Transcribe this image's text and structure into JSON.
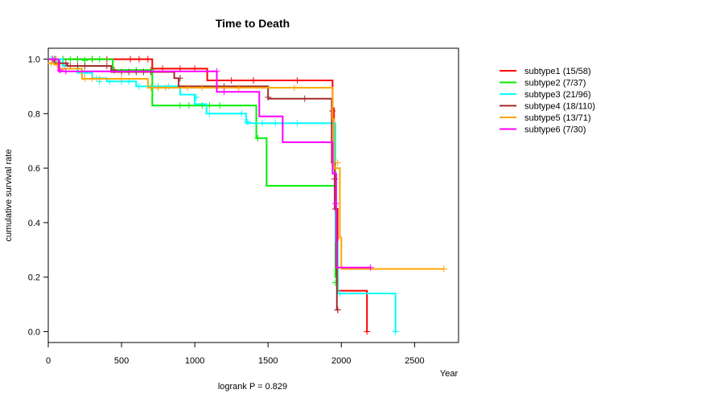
{
  "chart_data": {
    "type": "line",
    "subtype": "kaplan-meier",
    "title": "Time to Death",
    "xlabel": "Year",
    "ylabel": "cumulative survival rate",
    "xlim": [
      0,
      2800
    ],
    "ylim": [
      -0.04,
      1.04
    ],
    "xticks": [
      0,
      500,
      1000,
      1500,
      2000,
      2500
    ],
    "yticks": [
      0.0,
      0.2,
      0.4,
      0.6,
      0.8,
      1.0
    ],
    "ytick_labels": [
      "0.0",
      "0.2",
      "0.4",
      "0.6",
      "0.8",
      "1.0"
    ],
    "annotation": "logrank P = 0.829",
    "legend_position": "right, outside plot",
    "grid": false,
    "series": [
      {
        "name": "subtype1 (15/58)",
        "color": "#ff0000",
        "steps": [
          [
            0,
            1.0
          ],
          [
            710,
            0.965
          ],
          [
            1085,
            0.922
          ],
          [
            1940,
            0.82
          ],
          [
            1950,
            0.6
          ],
          [
            1960,
            0.45
          ],
          [
            1975,
            0.15
          ],
          [
            2175,
            0.0
          ],
          [
            2180,
            0.0
          ]
        ],
        "censor": [
          [
            50,
            1.0
          ],
          [
            100,
            1.0
          ],
          [
            200,
            1.0
          ],
          [
            300,
            1.0
          ],
          [
            400,
            1.0
          ],
          [
            560,
            1.0
          ],
          [
            620,
            1.0
          ],
          [
            680,
            1.0
          ],
          [
            780,
            0.965
          ],
          [
            900,
            0.965
          ],
          [
            1000,
            0.965
          ],
          [
            1150,
            0.922
          ],
          [
            1250,
            0.922
          ],
          [
            1400,
            0.922
          ],
          [
            1700,
            0.922
          ],
          [
            1955,
            0.56
          ],
          [
            1975,
            0.08
          ],
          [
            2175,
            0.0
          ]
        ]
      },
      {
        "name": "subtype2 (7/37)",
        "color": "#00ee00",
        "steps": [
          [
            0,
            1.0
          ],
          [
            440,
            0.96
          ],
          [
            710,
            0.83
          ],
          [
            1420,
            0.71
          ],
          [
            1490,
            0.535
          ],
          [
            1960,
            0.2
          ],
          [
            1975,
            0.15
          ],
          [
            1980,
            0.15
          ]
        ],
        "censor": [
          [
            40,
            1.0
          ],
          [
            100,
            1.0
          ],
          [
            150,
            1.0
          ],
          [
            200,
            1.0
          ],
          [
            250,
            0.995
          ],
          [
            300,
            1.0
          ],
          [
            350,
            1.0
          ],
          [
            450,
            0.96
          ],
          [
            600,
            0.96
          ],
          [
            700,
            0.96
          ],
          [
            900,
            0.83
          ],
          [
            960,
            0.83
          ],
          [
            1050,
            0.83
          ],
          [
            1100,
            0.83
          ],
          [
            1170,
            0.83
          ],
          [
            1430,
            0.71
          ],
          [
            1960,
            0.18
          ]
        ]
      },
      {
        "name": "subtype3 (21/96)",
        "color": "#00ffff",
        "steps": [
          [
            0,
            1.0
          ],
          [
            100,
            0.975
          ],
          [
            200,
            0.95
          ],
          [
            300,
            0.93
          ],
          [
            400,
            0.918
          ],
          [
            600,
            0.9
          ],
          [
            900,
            0.87
          ],
          [
            1000,
            0.835
          ],
          [
            1080,
            0.8
          ],
          [
            1350,
            0.765
          ],
          [
            1960,
            0.33
          ],
          [
            1975,
            0.14
          ],
          [
            2370,
            0.0
          ],
          [
            2375,
            0.0
          ]
        ],
        "censor": [
          [
            20,
            1.0
          ],
          [
            60,
            0.99
          ],
          [
            110,
            0.975
          ],
          [
            250,
            0.95
          ],
          [
            330,
            0.93
          ],
          [
            350,
            0.918
          ],
          [
            420,
            0.918
          ],
          [
            500,
            0.918
          ],
          [
            550,
            0.918
          ],
          [
            620,
            0.9
          ],
          [
            750,
            0.9
          ],
          [
            820,
            0.9
          ],
          [
            1010,
            0.86
          ],
          [
            1100,
            0.8
          ],
          [
            1320,
            0.8
          ],
          [
            1360,
            0.77
          ],
          [
            1460,
            0.765
          ],
          [
            1550,
            0.765
          ],
          [
            1700,
            0.765
          ],
          [
            1990,
            0.14
          ],
          [
            2370,
            0.0
          ]
        ]
      },
      {
        "name": "subtype4 (18/110)",
        "color": "#a52a2a",
        "steps": [
          [
            0,
            1.0
          ],
          [
            40,
            0.985
          ],
          [
            130,
            0.975
          ],
          [
            430,
            0.953
          ],
          [
            860,
            0.93
          ],
          [
            890,
            0.9
          ],
          [
            1500,
            0.855
          ],
          [
            1935,
            0.62
          ],
          [
            1955,
            0.45
          ],
          [
            1970,
            0.08
          ],
          [
            1975,
            0.08
          ]
        ],
        "censor": [
          [
            30,
            1.0
          ],
          [
            80,
            0.985
          ],
          [
            120,
            0.985
          ],
          [
            150,
            0.975
          ],
          [
            200,
            0.975
          ],
          [
            250,
            0.975
          ],
          [
            400,
            0.975
          ],
          [
            450,
            0.96
          ],
          [
            500,
            0.953
          ],
          [
            550,
            0.953
          ],
          [
            600,
            0.953
          ],
          [
            650,
            0.953
          ],
          [
            700,
            0.953
          ],
          [
            900,
            0.93
          ],
          [
            1200,
            0.9
          ],
          [
            1500,
            0.86
          ],
          [
            1750,
            0.855
          ],
          [
            1940,
            0.81
          ],
          [
            1960,
            0.45
          ],
          [
            1975,
            0.08
          ]
        ]
      },
      {
        "name": "subtype5 (13/71)",
        "color": "#ffa500",
        "steps": [
          [
            0,
            0.985
          ],
          [
            40,
            0.98
          ],
          [
            70,
            0.965
          ],
          [
            230,
            0.928
          ],
          [
            680,
            0.895
          ],
          [
            1940,
            0.78
          ],
          [
            1950,
            0.6
          ],
          [
            1960,
            0.6
          ],
          [
            1990,
            0.345
          ],
          [
            2000,
            0.23
          ],
          [
            2700,
            0.23
          ]
        ],
        "censor": [
          [
            20,
            0.985
          ],
          [
            60,
            0.98
          ],
          [
            250,
            0.928
          ],
          [
            300,
            0.928
          ],
          [
            350,
            0.928
          ],
          [
            500,
            0.928
          ],
          [
            700,
            0.895
          ],
          [
            750,
            0.895
          ],
          [
            800,
            0.895
          ],
          [
            950,
            0.895
          ],
          [
            1050,
            0.895
          ],
          [
            1300,
            0.895
          ],
          [
            1680,
            0.895
          ],
          [
            1960,
            0.6
          ],
          [
            1975,
            0.62
          ],
          [
            2700,
            0.23
          ]
        ]
      },
      {
        "name": "subtype6 (7/30)",
        "color": "#ff00ff",
        "steps": [
          [
            0,
            1.0
          ],
          [
            70,
            0.955
          ],
          [
            1150,
            0.88
          ],
          [
            1440,
            0.79
          ],
          [
            1600,
            0.695
          ],
          [
            1940,
            0.58
          ],
          [
            1965,
            0.235
          ],
          [
            2200,
            0.235
          ]
        ],
        "censor": [
          [
            30,
            1.0
          ],
          [
            80,
            0.96
          ],
          [
            120,
            0.955
          ],
          [
            1150,
            0.955
          ],
          [
            1200,
            0.88
          ],
          [
            1960,
            0.47
          ],
          [
            2200,
            0.235
          ]
        ]
      }
    ]
  }
}
